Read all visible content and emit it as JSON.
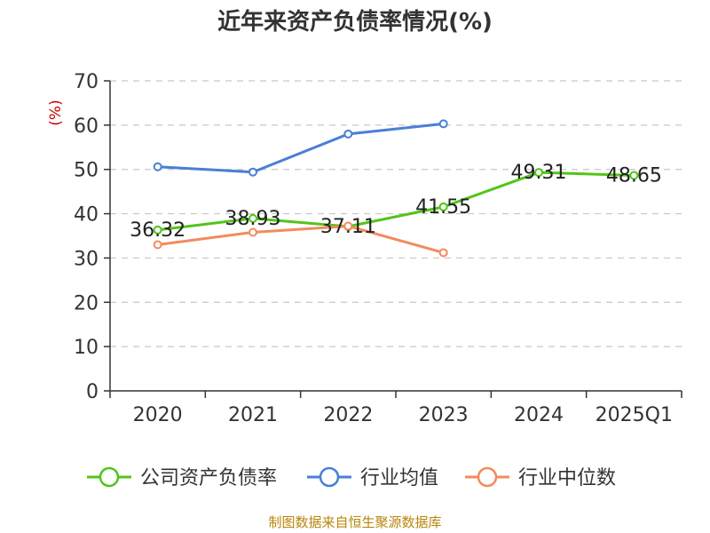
{
  "chart_data": {
    "type": "line",
    "title": "近年来资产负债率情况(%)",
    "ylabel": "(%)",
    "ylim": [
      0,
      70
    ],
    "yticks": [
      0,
      10,
      20,
      30,
      40,
      50,
      60,
      70
    ],
    "grid": true,
    "legend_position": "bottom",
    "categories": [
      "2020",
      "2021",
      "2022",
      "2023",
      "2024",
      "2025Q1"
    ],
    "series": [
      {
        "name": "公司资产负债率",
        "color": "#52c41a",
        "values": [
          36.32,
          38.93,
          37.11,
          41.55,
          49.31,
          48.65
        ],
        "labels": [
          "36.32",
          "38.93",
          "37.11",
          "41.55",
          "49.31",
          "48.65"
        ]
      },
      {
        "name": "行业均值",
        "color": "#4a7fd6",
        "values": [
          50.6,
          49.4,
          58.0,
          60.3,
          null,
          null
        ]
      },
      {
        "name": "行业中位数",
        "color": "#f28b5c",
        "values": [
          33.0,
          35.8,
          37.2,
          31.2,
          null,
          null
        ]
      }
    ]
  },
  "source": "制图数据来自恒生聚源数据库"
}
